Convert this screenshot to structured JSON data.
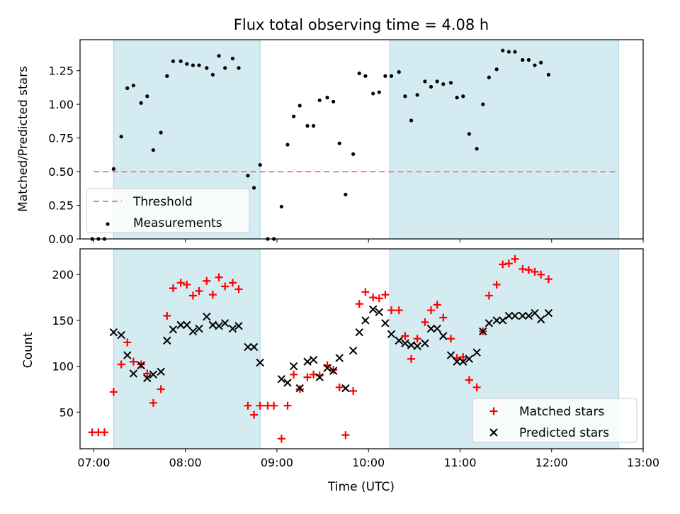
{
  "chart_data": [
    {
      "type": "scatter",
      "title": "Flux total observing time = 4.08 h",
      "ylabel": "Matched/Predicted stars",
      "xlabel": "",
      "ylim": [
        0,
        1.48
      ],
      "yticks": [
        0.0,
        0.25,
        0.5,
        0.75,
        1.0,
        1.25
      ],
      "ytick_labels": [
        "0.00",
        "0.25",
        "0.50",
        "0.75",
        "1.00",
        "1.25"
      ],
      "threshold": 0.5,
      "legend_position": "lower-left",
      "legend": [
        {
          "label": "Threshold",
          "marker": "dashed-line",
          "color": "#f08080"
        },
        {
          "label": "Measurements",
          "marker": "dot",
          "color": "#000000"
        }
      ],
      "series": [
        {
          "name": "Measurements",
          "color": "#000000",
          "points": [
            [
              "06:59",
              0.0
            ],
            [
              "07:03",
              0.0
            ],
            [
              "07:07",
              0.0
            ],
            [
              "07:13",
              0.52
            ],
            [
              "07:18",
              0.76
            ],
            [
              "07:22",
              1.12
            ],
            [
              "07:26",
              1.14
            ],
            [
              "07:31",
              1.01
            ],
            [
              "07:35",
              1.06
            ],
            [
              "07:39",
              0.66
            ],
            [
              "07:44",
              0.79
            ],
            [
              "07:48",
              1.21
            ],
            [
              "07:52",
              1.32
            ],
            [
              "07:57",
              1.32
            ],
            [
              "08:01",
              1.3
            ],
            [
              "08:05",
              1.29
            ],
            [
              "08:09",
              1.29
            ],
            [
              "08:14",
              1.27
            ],
            [
              "08:18",
              1.22
            ],
            [
              "08:22",
              1.36
            ],
            [
              "08:26",
              1.27
            ],
            [
              "08:31",
              1.34
            ],
            [
              "08:35",
              1.27
            ],
            [
              "08:41",
              0.47
            ],
            [
              "08:45",
              0.38
            ],
            [
              "08:49",
              0.55
            ],
            [
              "08:54",
              0.0
            ],
            [
              "08:58",
              0.0
            ],
            [
              "09:03",
              0.24
            ],
            [
              "09:07",
              0.7
            ],
            [
              "09:11",
              0.91
            ],
            [
              "09:15",
              0.99
            ],
            [
              "09:20",
              0.84
            ],
            [
              "09:24",
              0.84
            ],
            [
              "09:28",
              1.03
            ],
            [
              "09:33",
              1.05
            ],
            [
              "09:37",
              1.02
            ],
            [
              "09:41",
              0.71
            ],
            [
              "09:45",
              0.33
            ],
            [
              "09:50",
              0.63
            ],
            [
              "09:54",
              1.23
            ],
            [
              "09:58",
              1.21
            ],
            [
              "10:03",
              1.08
            ],
            [
              "10:07",
              1.09
            ],
            [
              "10:11",
              1.21
            ],
            [
              "10:15",
              1.21
            ],
            [
              "10:20",
              1.24
            ],
            [
              "10:24",
              1.06
            ],
            [
              "10:28",
              0.88
            ],
            [
              "10:32",
              1.07
            ],
            [
              "10:37",
              1.17
            ],
            [
              "10:41",
              1.13
            ],
            [
              "10:45",
              1.17
            ],
            [
              "10:49",
              1.15
            ],
            [
              "10:54",
              1.16
            ],
            [
              "10:58",
              1.05
            ],
            [
              "11:02",
              1.06
            ],
            [
              "11:06",
              0.78
            ],
            [
              "11:11",
              0.67
            ],
            [
              "11:15",
              1.0
            ],
            [
              "11:19",
              1.2
            ],
            [
              "11:24",
              1.26
            ],
            [
              "11:28",
              1.4
            ],
            [
              "11:32",
              1.39
            ],
            [
              "11:36",
              1.39
            ],
            [
              "11:41",
              1.33
            ],
            [
              "11:45",
              1.33
            ],
            [
              "11:49",
              1.29
            ],
            [
              "11:53",
              1.31
            ],
            [
              "11:58",
              1.22
            ]
          ]
        }
      ]
    },
    {
      "type": "scatter",
      "title": "",
      "ylabel": "Count",
      "xlabel": "Time (UTC)",
      "xlim": [
        "06:51",
        "13:00"
      ],
      "xticks": [
        "07:00",
        "08:00",
        "09:00",
        "10:00",
        "11:00",
        "12:00",
        "13:00"
      ],
      "ylim": [
        10,
        228
      ],
      "yticks": [
        50,
        100,
        150,
        200
      ],
      "legend_position": "lower-right",
      "legend": [
        {
          "label": "Matched stars",
          "marker": "+",
          "color": "#ff0000"
        },
        {
          "label": "Predicted stars",
          "marker": "x",
          "color": "#000000"
        }
      ],
      "series": [
        {
          "name": "Matched stars",
          "color": "#ff0000",
          "points": [
            [
              "06:59",
              28
            ],
            [
              "07:03",
              28
            ],
            [
              "07:07",
              28
            ],
            [
              "07:13",
              72
            ],
            [
              "07:18",
              102
            ],
            [
              "07:22",
              126
            ],
            [
              "07:26",
              105
            ],
            [
              "07:31",
              102
            ],
            [
              "07:35",
              92
            ],
            [
              "07:39",
              60
            ],
            [
              "07:44",
              75
            ],
            [
              "07:48",
              155
            ],
            [
              "07:52",
              185
            ],
            [
              "07:57",
              191
            ],
            [
              "08:01",
              189
            ],
            [
              "08:05",
              177
            ],
            [
              "08:09",
              182
            ],
            [
              "08:14",
              193
            ],
            [
              "08:18",
              178
            ],
            [
              "08:22",
              197
            ],
            [
              "08:26",
              187
            ],
            [
              "08:31",
              191
            ],
            [
              "08:35",
              184
            ],
            [
              "08:41",
              57
            ],
            [
              "08:45",
              47
            ],
            [
              "08:49",
              57
            ],
            [
              "08:54",
              57
            ],
            [
              "08:58",
              57
            ],
            [
              "09:03",
              21
            ],
            [
              "09:07",
              57
            ],
            [
              "09:11",
              91
            ],
            [
              "09:15",
              75
            ],
            [
              "09:20",
              88
            ],
            [
              "09:24",
              91
            ],
            [
              "09:28",
              90
            ],
            [
              "09:33",
              101
            ],
            [
              "09:37",
              96
            ],
            [
              "09:41",
              77
            ],
            [
              "09:45",
              25
            ],
            [
              "09:50",
              73
            ],
            [
              "09:54",
              168
            ],
            [
              "09:58",
              181
            ],
            [
              "10:03",
              175
            ],
            [
              "10:07",
              174
            ],
            [
              "10:11",
              178
            ],
            [
              "10:15",
              161
            ],
            [
              "10:20",
              161
            ],
            [
              "10:24",
              133
            ],
            [
              "10:28",
              108
            ],
            [
              "10:32",
              130
            ],
            [
              "10:37",
              148
            ],
            [
              "10:41",
              161
            ],
            [
              "10:45",
              167
            ],
            [
              "10:49",
              153
            ],
            [
              "10:54",
              130
            ],
            [
              "10:58",
              109
            ],
            [
              "11:02",
              110
            ],
            [
              "11:06",
              85
            ],
            [
              "11:11",
              77
            ],
            [
              "11:15",
              138
            ],
            [
              "11:19",
              177
            ],
            [
              "11:24",
              189
            ],
            [
              "11:28",
              211
            ],
            [
              "11:32",
              212
            ],
            [
              "11:36",
              217
            ],
            [
              "11:41",
              206
            ],
            [
              "11:45",
              205
            ],
            [
              "11:49",
              203
            ],
            [
              "11:53",
              200
            ],
            [
              "11:58",
              195
            ]
          ]
        },
        {
          "name": "Predicted stars",
          "color": "#000000",
          "points": [
            [
              "07:13",
              137
            ],
            [
              "07:18",
              134
            ],
            [
              "07:22",
              112
            ],
            [
              "07:26",
              92
            ],
            [
              "07:31",
              101
            ],
            [
              "07:35",
              87
            ],
            [
              "07:39",
              91
            ],
            [
              "07:44",
              94
            ],
            [
              "07:48",
              128
            ],
            [
              "07:52",
              140
            ],
            [
              "07:57",
              145
            ],
            [
              "08:01",
              145
            ],
            [
              "08:05",
              138
            ],
            [
              "08:09",
              141
            ],
            [
              "08:14",
              154
            ],
            [
              "08:18",
              145
            ],
            [
              "08:22",
              144
            ],
            [
              "08:26",
              147
            ],
            [
              "08:31",
              141
            ],
            [
              "08:35",
              144
            ],
            [
              "08:41",
              121
            ],
            [
              "08:45",
              121
            ],
            [
              "08:49",
              104
            ],
            [
              "09:03",
              86
            ],
            [
              "09:07",
              82
            ],
            [
              "09:11",
              100
            ],
            [
              "09:15",
              76
            ],
            [
              "09:20",
              105
            ],
            [
              "09:24",
              107
            ],
            [
              "09:28",
              88
            ],
            [
              "09:33",
              98
            ],
            [
              "09:37",
              95
            ],
            [
              "09:41",
              109
            ],
            [
              "09:45",
              76
            ],
            [
              "09:50",
              117
            ],
            [
              "09:54",
              137
            ],
            [
              "09:58",
              150
            ],
            [
              "10:03",
              162
            ],
            [
              "10:07",
              159
            ],
            [
              "10:11",
              147
            ],
            [
              "10:15",
              135
            ],
            [
              "10:20",
              128
            ],
            [
              "10:24",
              125
            ],
            [
              "10:28",
              123
            ],
            [
              "10:32",
              122
            ],
            [
              "10:37",
              125
            ],
            [
              "10:41",
              141
            ],
            [
              "10:45",
              141
            ],
            [
              "10:49",
              133
            ],
            [
              "10:54",
              112
            ],
            [
              "10:58",
              105
            ],
            [
              "11:02",
              105
            ],
            [
              "11:06",
              108
            ],
            [
              "11:11",
              115
            ],
            [
              "11:15",
              138
            ],
            [
              "11:19",
              147
            ],
            [
              "11:24",
              150
            ],
            [
              "11:28",
              150
            ],
            [
              "11:32",
              155
            ],
            [
              "11:36",
              155
            ],
            [
              "11:41",
              155
            ],
            [
              "11:45",
              155
            ],
            [
              "11:49",
              158
            ],
            [
              "11:53",
              151
            ],
            [
              "11:58",
              158
            ]
          ]
        }
      ]
    }
  ],
  "observing_windows": [
    [
      "07:13",
      "08:49"
    ],
    [
      "10:14",
      "12:44"
    ]
  ],
  "colors": {
    "window": "#d4ebf1",
    "threshold": "#f08080",
    "matched": "#ff0000",
    "predicted": "#000000"
  }
}
